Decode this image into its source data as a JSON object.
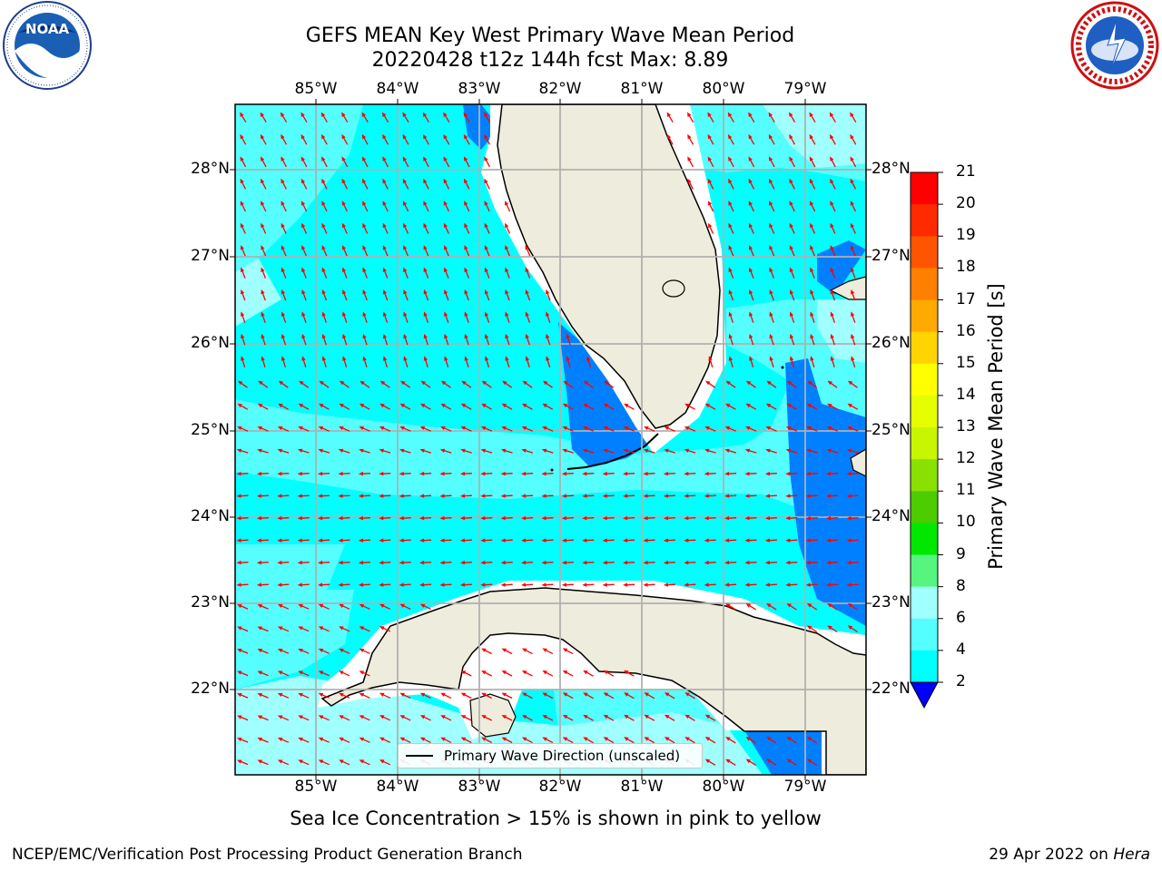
{
  "title": {
    "line1": "GEFS MEAN Key West Primary Wave Mean Period",
    "line2": "20220428 t12z 144h fcst   Max: 8.89"
  },
  "logos": {
    "left": {
      "name": "NOAA",
      "ring_text": "NATIONAL OCEANIC AND ATMOSPHERIC ADMINISTRATION · U.S. DEPARTMENT OF COMMERCE"
    },
    "right": {
      "name": "NATIONAL WEATHER SERVICE"
    }
  },
  "map": {
    "lon_labels": [
      "85°W",
      "84°W",
      "83°W",
      "82°W",
      "81°W",
      "80°W",
      "79°W"
    ],
    "lat_labels": [
      "28°N",
      "27°N",
      "26°N",
      "25°N",
      "24°N",
      "23°N",
      "22°N"
    ],
    "legend_label": "Primary Wave Direction (unscaled)",
    "arrow_color": "#ff0000",
    "land_color": "#eeecdc",
    "grid_color": "#b0b0b0"
  },
  "colorbar": {
    "label": "Primary Wave Mean Period [s]",
    "ticks": [
      "21",
      "20",
      "19",
      "18",
      "17",
      "16",
      "15",
      "14",
      "13",
      "12",
      "11",
      "10",
      "9",
      "8",
      "6",
      "4",
      "2"
    ],
    "colors": [
      "#ff0000",
      "#ff2a00",
      "#ff5500",
      "#ff7f00",
      "#ffaa00",
      "#ffd400",
      "#ffff00",
      "#e5ff00",
      "#c8f500",
      "#8ae000",
      "#4dcc00",
      "#00e800",
      "#55f57f",
      "#a0ffff",
      "#55ffff",
      "#00ffff",
      "#0080ff"
    ]
  },
  "note": "Sea Ice Concentration > 15% is shown in pink to yellow",
  "footer": {
    "left": "NCEP/EMC/Verification Post Processing Product Generation Branch",
    "right_date": "29 Apr 2022 on",
    "right_host": "Hera"
  }
}
